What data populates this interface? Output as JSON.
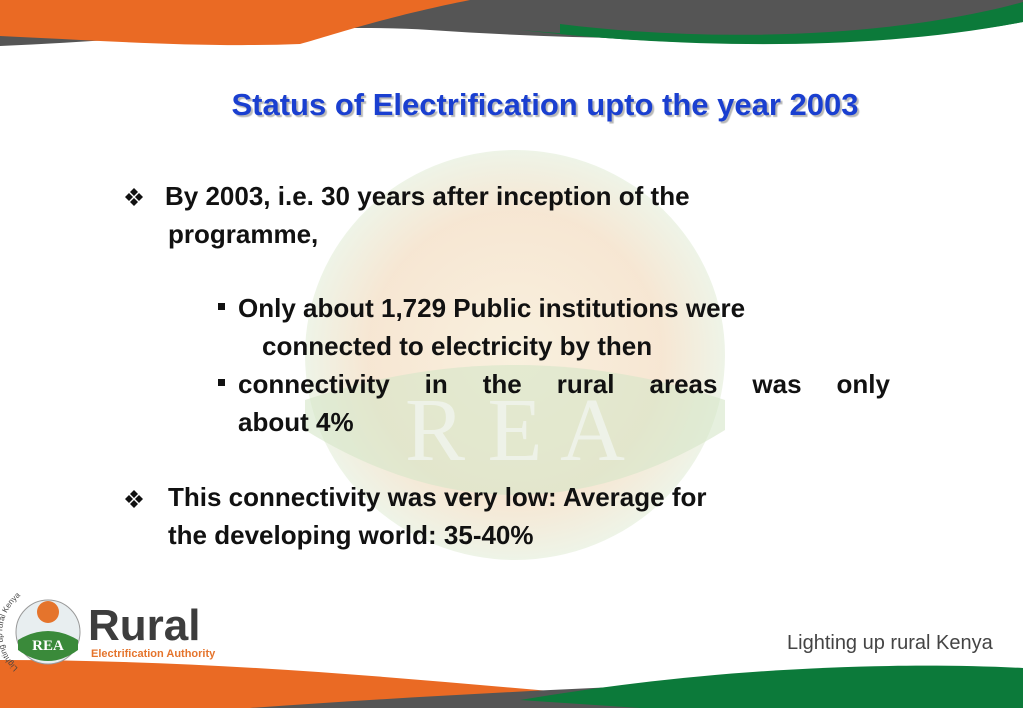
{
  "title": "Status of Electrification upto the year 2003",
  "bullets": [
    {
      "lines": [
        "By 2003, i.e. 30 years after inception of the",
        "programme,"
      ],
      "sub_bullets": [
        {
          "lines": [
            "Only about 1,729 Public institutions were",
            "connected to electricity by then"
          ]
        },
        {
          "lines": [
            "connectivity in the rural areas was only",
            "about 4%"
          ]
        }
      ]
    },
    {
      "lines": [
        "This connectivity was very low: Average for",
        "the developing world: 35-40%"
      ]
    }
  ],
  "watermark": "R E A",
  "logo": {
    "emblem": "REA",
    "ring": "Lighting up rural Kenya",
    "name": "Rural",
    "subtitle": "Electrification Authority"
  },
  "tagline": "Lighting up rural Kenya"
}
